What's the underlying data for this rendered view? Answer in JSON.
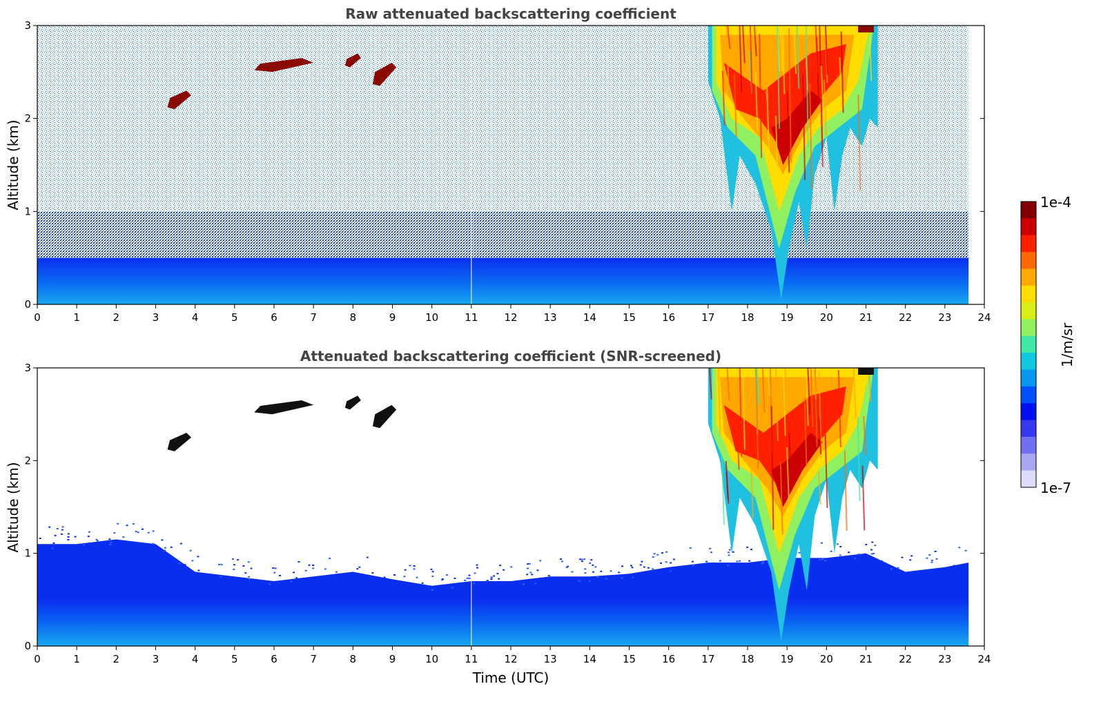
{
  "chart_data": [
    {
      "type": "heatmap",
      "title": "Raw attenuated backscattering coefficient",
      "xlabel": "",
      "ylabel": "Altitude (km)",
      "xlim": [
        0,
        24
      ],
      "ylim": [
        0,
        3
      ],
      "xticks": [
        "0",
        "1",
        "2",
        "3",
        "4",
        "5",
        "6",
        "7",
        "8",
        "9",
        "10",
        "11",
        "12",
        "13",
        "14",
        "15",
        "16",
        "17",
        "18",
        "19",
        "20",
        "21",
        "22",
        "23",
        "24"
      ],
      "yticks": [
        "0",
        "1",
        "2",
        "3"
      ],
      "data_end_hour": 23.6,
      "features": [
        {
          "name": "boundary layer",
          "t_start": 0,
          "t_end": 23.6,
          "alt_top_km": 0.5
        },
        {
          "name": "noise (speckled)",
          "t_start": 0,
          "t_end": 23.6,
          "alt_range_km": [
            0.5,
            3.0
          ]
        },
        {
          "name": "cloud",
          "t_start": 3.3,
          "t_end": 3.9,
          "alt_range_km": [
            2.1,
            2.3
          ]
        },
        {
          "name": "cloud",
          "t_start": 5.5,
          "t_end": 7.0,
          "alt_range_km": [
            2.5,
            2.65
          ]
        },
        {
          "name": "cloud",
          "t_start": 7.8,
          "t_end": 8.2,
          "alt_range_km": [
            2.55,
            2.7
          ]
        },
        {
          "name": "cloud",
          "t_start": 8.5,
          "t_end": 9.1,
          "alt_range_km": [
            2.35,
            2.6
          ]
        },
        {
          "name": "convective cloud / precipitation",
          "t_start": 17.0,
          "t_end": 20.8,
          "alt_range_km": [
            0.05,
            3.0
          ]
        },
        {
          "name": "cloud",
          "t_start": 20.8,
          "t_end": 21.3,
          "alt_range_km": [
            2.0,
            3.0
          ]
        }
      ]
    },
    {
      "type": "heatmap",
      "title": "Attenuated backscattering coefficient (SNR-screened)",
      "xlabel": "Time (UTC)",
      "ylabel": "Altitude (km)",
      "xlim": [
        0,
        24
      ],
      "ylim": [
        0,
        3
      ],
      "xticks": [
        "0",
        "1",
        "2",
        "3",
        "4",
        "5",
        "6",
        "7",
        "8",
        "9",
        "10",
        "11",
        "12",
        "13",
        "14",
        "15",
        "16",
        "17",
        "18",
        "19",
        "20",
        "21",
        "22",
        "23",
        "24"
      ],
      "yticks": [
        "0",
        "1",
        "2",
        "3"
      ],
      "data_end_hour": 23.6,
      "screened_bl_top_km": [
        [
          0,
          1.1
        ],
        [
          1,
          1.1
        ],
        [
          2,
          1.15
        ],
        [
          3,
          1.1
        ],
        [
          4,
          0.8
        ],
        [
          5,
          0.75
        ],
        [
          6,
          0.7
        ],
        [
          7,
          0.75
        ],
        [
          8,
          0.8
        ],
        [
          9,
          0.72
        ],
        [
          10,
          0.65
        ],
        [
          11,
          0.7
        ],
        [
          12,
          0.7
        ],
        [
          13,
          0.75
        ],
        [
          14,
          0.75
        ],
        [
          15,
          0.78
        ],
        [
          16,
          0.85
        ],
        [
          17,
          0.9
        ],
        [
          18,
          0.9
        ],
        [
          19,
          0.95
        ],
        [
          20,
          0.95
        ],
        [
          21,
          1.0
        ],
        [
          22,
          0.8
        ],
        [
          23,
          0.85
        ],
        [
          23.6,
          0.9
        ]
      ]
    }
  ],
  "colorbar": {
    "max_label": "1e-4",
    "min_label": "1e-7",
    "label": "1/m/sr",
    "colors": [
      "#800000",
      "#cc0000",
      "#ff2000",
      "#ff6a00",
      "#ffa800",
      "#ffdd00",
      "#d8ee18",
      "#90f060",
      "#40e8a8",
      "#10c8e0",
      "#0898f0",
      "#0050ff",
      "#0010f0",
      "#3838f0",
      "#7070f0",
      "#a8a8f0",
      "#dcdcf8"
    ]
  }
}
